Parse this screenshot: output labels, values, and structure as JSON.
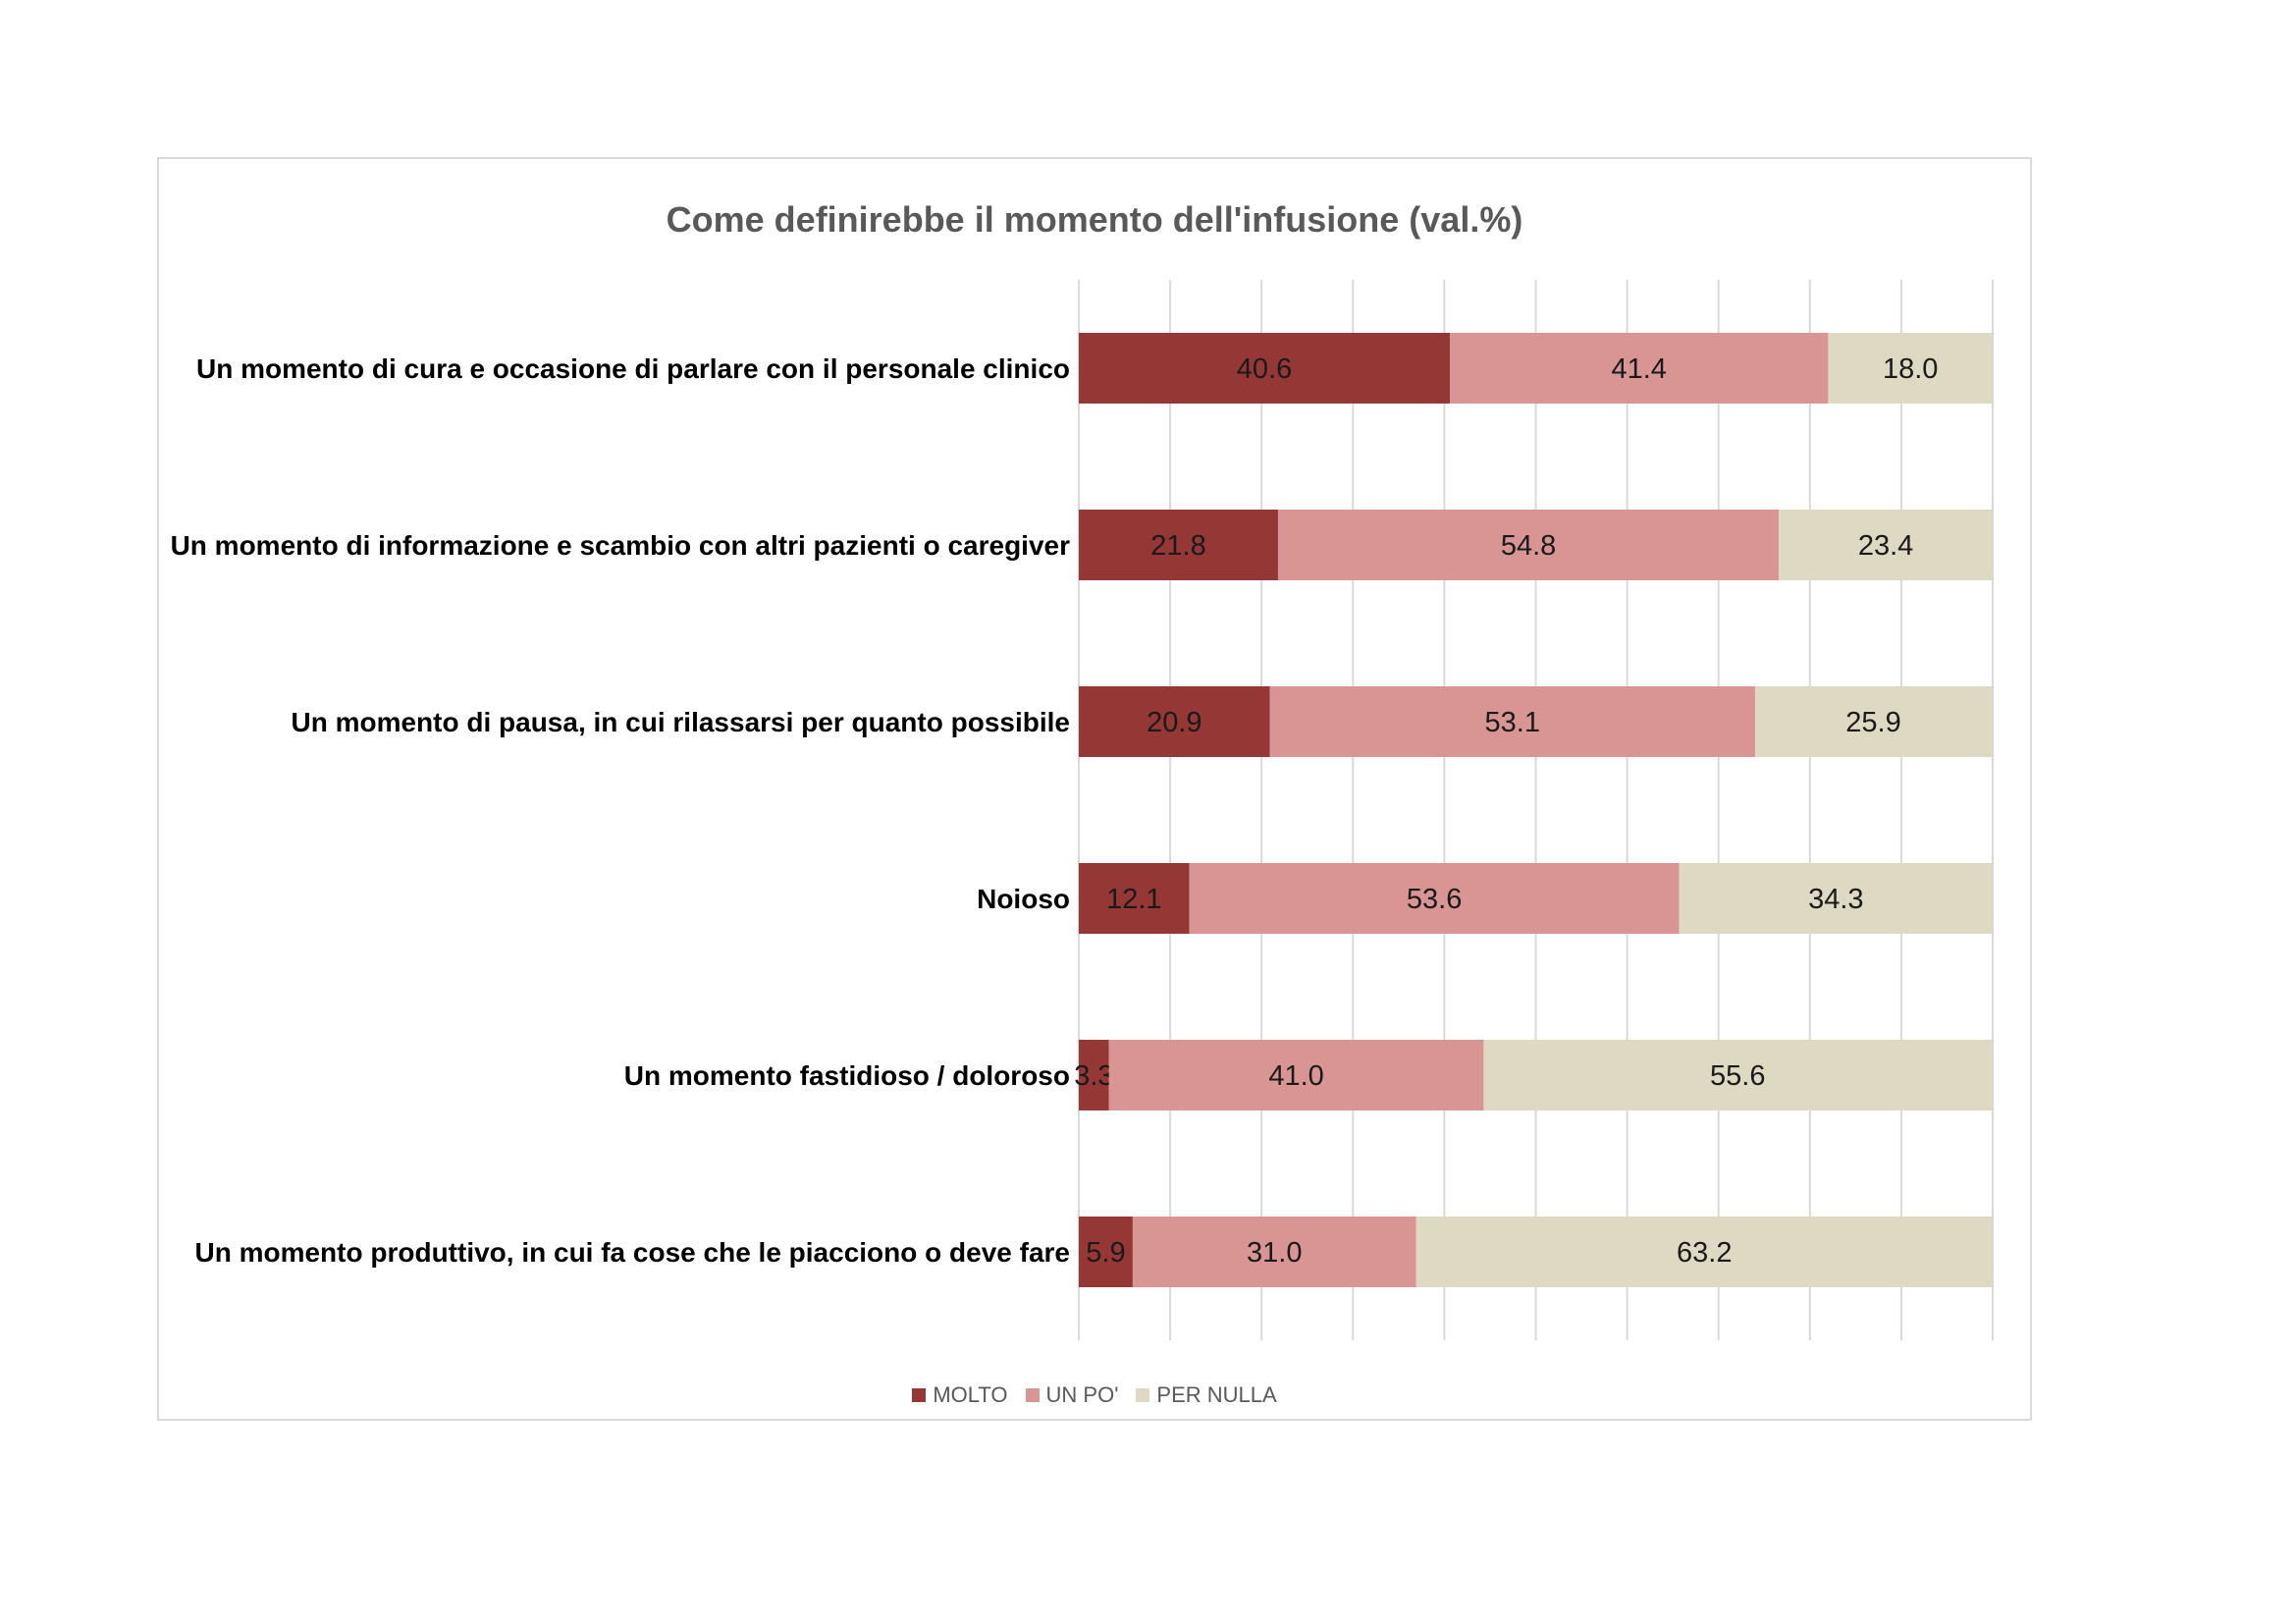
{
  "chart_data": {
    "type": "bar",
    "orientation": "horizontal",
    "stacked": true,
    "title": "Come definirebbe il momento dell'infusione (val.%)",
    "categories": [
      "Un momento di cura e occasione di parlare con il personale clinico",
      "Un momento di informazione e scambio con altri pazienti o caregiver",
      "Un momento di pausa, in cui rilassarsi per quanto possibile",
      "Noioso",
      "Un momento fastidioso / doloroso",
      "Un momento produttivo, in cui fa cose che le piacciono o deve fare"
    ],
    "series": [
      {
        "name": "MOLTO",
        "color": "#953735",
        "values": [
          40.6,
          21.8,
          20.9,
          12.1,
          3.3,
          5.9
        ]
      },
      {
        "name": "UN PO'",
        "color": "#d99594",
        "values": [
          41.4,
          54.8,
          53.1,
          53.6,
          41.0,
          31.0
        ]
      },
      {
        "name": "PER NULLA",
        "color": "#ddd9c3",
        "values": [
          18.0,
          23.4,
          25.9,
          34.3,
          55.6,
          63.2
        ]
      }
    ],
    "xlim": [
      0,
      100
    ],
    "grid": true,
    "legend_position": "bottom"
  }
}
